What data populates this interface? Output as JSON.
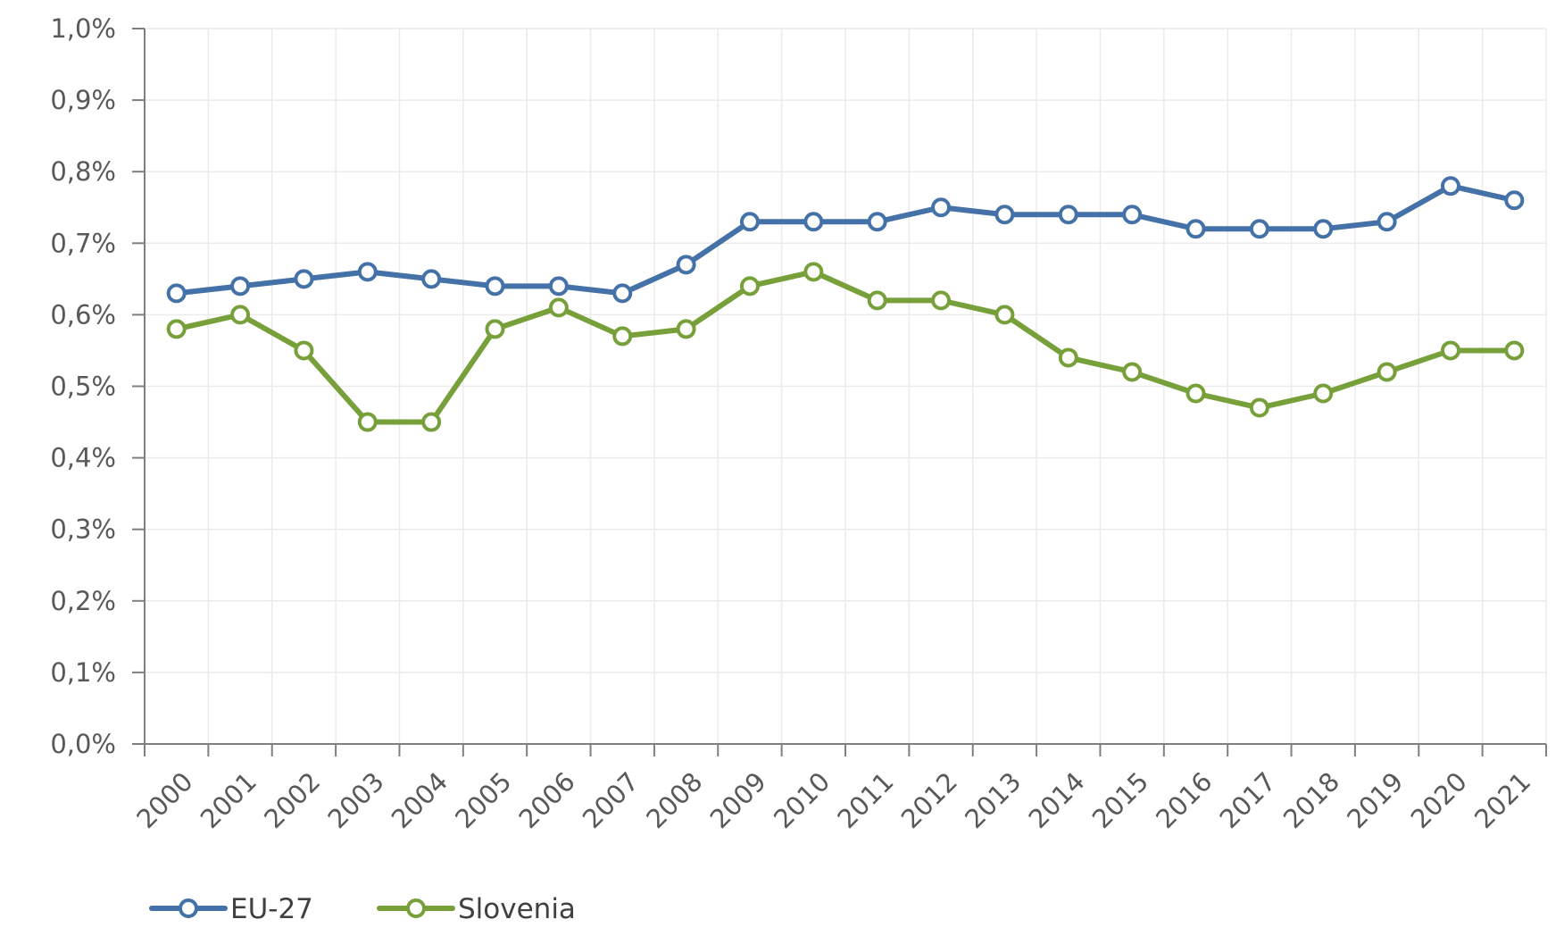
{
  "chart_data": {
    "type": "line",
    "categories": [
      "2000",
      "2001",
      "2002",
      "2003",
      "2004",
      "2005",
      "2006",
      "2007",
      "2008",
      "2009",
      "2010",
      "2011",
      "2012",
      "2013",
      "2014",
      "2015",
      "2016",
      "2017",
      "2018",
      "2019",
      "2020",
      "2021"
    ],
    "y_tick_labels": [
      "0,0%",
      "0,1%",
      "0,2%",
      "0,3%",
      "0,4%",
      "0,5%",
      "0,6%",
      "0,7%",
      "0,8%",
      "0,9%",
      "1,0%"
    ],
    "ylim": [
      0,
      1.0
    ],
    "y_unit": "%",
    "grid": true,
    "legend_position": "bottom-left",
    "series": [
      {
        "name": "EU-27",
        "color": "#4472a8",
        "values": [
          0.63,
          0.64,
          0.65,
          0.66,
          0.65,
          0.64,
          0.64,
          0.63,
          0.67,
          0.73,
          0.73,
          0.73,
          0.75,
          0.74,
          0.74,
          0.74,
          0.72,
          0.72,
          0.72,
          0.73,
          0.78,
          0.76
        ]
      },
      {
        "name": "Slovenia",
        "color": "#77a03a",
        "values": [
          0.58,
          0.6,
          0.55,
          0.45,
          0.45,
          0.58,
          0.61,
          0.57,
          0.58,
          0.64,
          0.66,
          0.62,
          0.62,
          0.6,
          0.54,
          0.52,
          0.49,
          0.47,
          0.49,
          0.52,
          0.55,
          0.55
        ]
      }
    ],
    "title": "",
    "xlabel": "",
    "ylabel": ""
  },
  "colors": {
    "axis": "#7f7f7f",
    "grid": "#ebebeb",
    "marker_fill": "#ffffff"
  }
}
